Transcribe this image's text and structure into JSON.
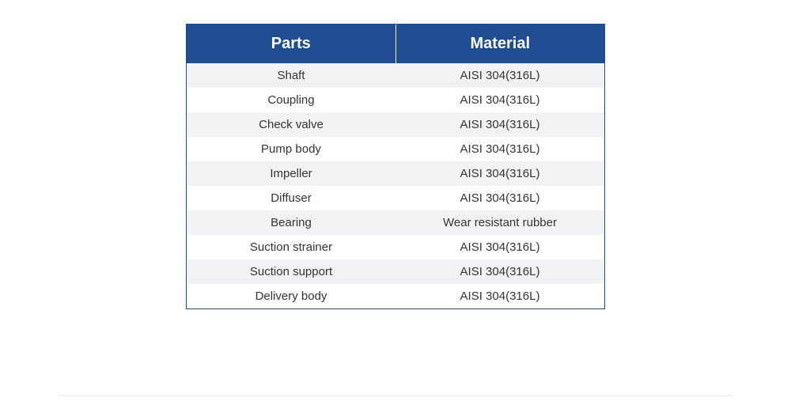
{
  "table": {
    "header_bg": "#1e4d91",
    "header_color": "#ffffff",
    "border_color": "#1e4d91",
    "odd_row_bg": "#f2f2f5",
    "even_row_bg": "#ffffff",
    "text_color": "#333333",
    "header_fontsize": 20,
    "body_fontsize": 15,
    "columns": [
      "Parts",
      "Material"
    ],
    "rows": [
      [
        "Shaft",
        "AISI 304(316L)"
      ],
      [
        "Coupling",
        "AISI 304(316L)"
      ],
      [
        "Check valve",
        "AISI 304(316L)"
      ],
      [
        "Pump body",
        "AISI 304(316L)"
      ],
      [
        "Impeller",
        "AISI 304(316L)"
      ],
      [
        "Diffuser",
        "AISI 304(316L)"
      ],
      [
        "Bearing",
        "Wear resistant rubber"
      ],
      [
        "Suction strainer",
        "AISI 304(316L)"
      ],
      [
        "Suction support",
        "AISI 304(316L)"
      ],
      [
        "Delivery body",
        "AISI 304(316L)"
      ]
    ]
  },
  "divider_color": "#ebebeb"
}
